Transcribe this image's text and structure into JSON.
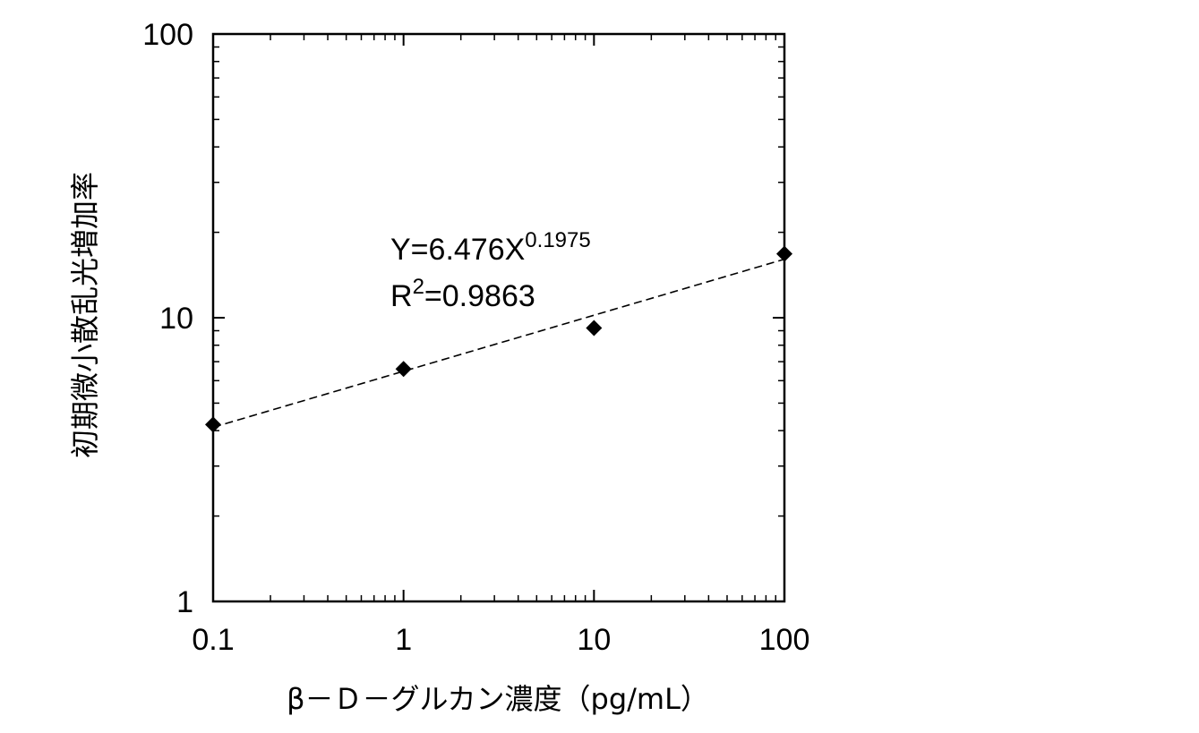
{
  "chart_data": {
    "type": "scatter",
    "xscale": "log",
    "yscale": "log",
    "xlim": [
      0.1,
      100
    ],
    "ylim": [
      1,
      100
    ],
    "xticks": [
      0.1,
      1,
      10,
      100
    ],
    "xtick_labels": [
      "0.1",
      "1",
      "10",
      "100"
    ],
    "yticks": [
      1,
      10,
      100
    ],
    "ytick_labels": [
      "1",
      "10",
      "100"
    ],
    "xlabel": "β－Ｄ－グルカン濃度（pg/mL）",
    "ylabel": "初期微小散乱光増加率",
    "grid": false,
    "series": [
      {
        "marker": "diamond",
        "x": [
          0.1,
          1,
          10,
          100
        ],
        "y": [
          4.2,
          6.6,
          9.2,
          16.8
        ]
      }
    ],
    "trendline": {
      "style": "dashed",
      "a": 6.476,
      "b": 0.1975
    },
    "annotation": {
      "eq_prefix": "Y=6.476X",
      "eq_exponent": "0.1975",
      "r2_prefix": "R",
      "r2_exponent": "2",
      "r2_suffix": "=0.9863"
    }
  }
}
